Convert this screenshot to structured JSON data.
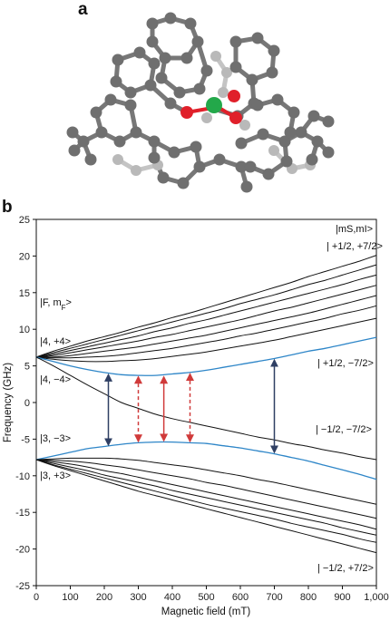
{
  "panel_labels": {
    "a": "a",
    "b": "b"
  },
  "colors": {
    "black_lines": "#111111",
    "blue_lines": "#2e86c8",
    "red_arrows": "#d03a3a",
    "navy_arrows": "#2f3f63",
    "atom_grey": "#6e6e6e",
    "atom_light": "#b4b4b4",
    "oxygen": "#e0202a",
    "holmium": "#23a84a"
  },
  "molecule": {
    "description_icon": "molecular-structure-icon"
  },
  "chart_data": {
    "type": "line",
    "title": "",
    "xlabel": "Magnetic field (mT)",
    "ylabel": "Frequency (GHz)",
    "xlim": [
      0,
      1000
    ],
    "ylim": [
      -25,
      25
    ],
    "x_ticks": [
      "0",
      "100",
      "200",
      "300",
      "400",
      "500",
      "600",
      "700",
      "800",
      "900",
      "1,000"
    ],
    "y_ticks": [
      "25",
      "20",
      "15",
      "10",
      "5",
      "0",
      "-5",
      "-10",
      "-15",
      "-20",
      "-25"
    ],
    "x": [
      0,
      50,
      100,
      150,
      200,
      250,
      300,
      350,
      400,
      450,
      500,
      550,
      600,
      650,
      700,
      750,
      800,
      850,
      900,
      950,
      1000
    ],
    "series": [
      {
        "color": "#111111",
        "values": [
          6.2,
          7.0,
          7.7,
          8.4,
          9.0,
          9.6,
          10.3,
          10.9,
          11.6,
          12.2,
          12.9,
          13.6,
          14.3,
          15.0,
          15.7,
          16.4,
          17.2,
          17.9,
          18.6,
          19.3,
          20.1
        ]
      },
      {
        "color": "#111111",
        "values": [
          6.2,
          6.8,
          7.4,
          8.0,
          8.6,
          9.2,
          9.8,
          10.4,
          11.0,
          11.6,
          12.2,
          12.8,
          13.5,
          14.1,
          14.7,
          15.4,
          16.1,
          16.7,
          17.4,
          18.1,
          18.8
        ]
      },
      {
        "color": "#111111",
        "values": [
          6.2,
          6.6,
          7.1,
          7.6,
          8.1,
          8.6,
          9.1,
          9.7,
          10.2,
          10.8,
          11.3,
          11.9,
          12.5,
          13.1,
          13.7,
          14.3,
          14.9,
          15.5,
          16.1,
          16.8,
          17.4
        ]
      },
      {
        "color": "#111111",
        "values": [
          6.2,
          6.4,
          6.8,
          7.2,
          7.6,
          8.0,
          8.4,
          8.9,
          9.3,
          9.8,
          10.3,
          10.8,
          11.3,
          11.9,
          12.5,
          13.0,
          13.6,
          14.2,
          14.8,
          15.4,
          16.0
        ]
      },
      {
        "color": "#111111",
        "values": [
          6.2,
          6.2,
          6.4,
          6.7,
          7.0,
          7.3,
          7.6,
          8.0,
          8.4,
          8.8,
          9.2,
          9.7,
          10.2,
          10.7,
          11.2,
          11.7,
          12.2,
          12.8,
          13.4,
          14.0,
          14.6
        ]
      },
      {
        "color": "#111111",
        "values": [
          6.2,
          6.1,
          6.1,
          6.2,
          6.3,
          6.5,
          6.8,
          7.1,
          7.4,
          7.8,
          8.2,
          8.6,
          9.1,
          9.5,
          10.0,
          10.5,
          11.0,
          11.5,
          12.1,
          12.6,
          13.2
        ]
      },
      {
        "color": "#111111",
        "values": [
          6.2,
          5.9,
          5.7,
          5.6,
          5.6,
          5.7,
          5.8,
          6.0,
          6.3,
          6.6,
          6.9,
          7.3,
          7.7,
          8.1,
          8.5,
          9.0,
          9.5,
          10.0,
          10.5,
          11.0,
          11.5
        ]
      },
      {
        "color": "#2e86c8",
        "values": [
          6.2,
          5.6,
          5.0,
          4.5,
          4.1,
          3.8,
          3.7,
          3.7,
          3.9,
          4.1,
          4.4,
          4.8,
          5.2,
          5.6,
          6.0,
          6.5,
          7.0,
          7.4,
          7.9,
          8.4,
          8.9
        ]
      },
      {
        "color": "#111111",
        "values": [
          6.2,
          5.0,
          3.7,
          2.4,
          1.2,
          0.0,
          -0.8,
          -1.6,
          -2.2,
          -2.7,
          -3.2,
          -3.7,
          -4.2,
          -4.7,
          -5.1,
          -5.6,
          -6.0,
          -6.5,
          -6.9,
          -7.4,
          -7.8
        ]
      },
      {
        "color": "#2e86c8",
        "values": [
          -7.8,
          -7.3,
          -6.8,
          -6.3,
          -6.0,
          -5.7,
          -5.5,
          -5.4,
          -5.4,
          -5.5,
          -5.6,
          -5.9,
          -6.2,
          -6.6,
          -7.0,
          -7.5,
          -8.0,
          -8.6,
          -9.2,
          -9.8,
          -10.5
        ]
      },
      {
        "color": "#111111",
        "values": [
          -7.8,
          -7.7,
          -7.6,
          -7.6,
          -7.6,
          -7.7,
          -7.9,
          -8.2,
          -8.5,
          -8.8,
          -9.2,
          -9.6,
          -10.0,
          -10.5,
          -10.9,
          -11.4,
          -11.9,
          -12.4,
          -12.9,
          -13.4,
          -13.9
        ]
      },
      {
        "color": "#111111",
        "values": [
          -7.8,
          -7.9,
          -8.0,
          -8.2,
          -8.5,
          -8.8,
          -9.2,
          -9.6,
          -10.0,
          -10.4,
          -10.9,
          -11.3,
          -11.8,
          -12.3,
          -12.8,
          -13.3,
          -13.8,
          -14.3,
          -14.8,
          -15.3,
          -15.8
        ]
      },
      {
        "color": "#111111",
        "values": [
          -7.8,
          -8.1,
          -8.4,
          -8.8,
          -9.3,
          -9.7,
          -10.2,
          -10.7,
          -11.2,
          -11.7,
          -12.2,
          -12.7,
          -13.2,
          -13.7,
          -14.2,
          -14.7,
          -15.2,
          -15.7,
          -16.2,
          -16.7,
          -17.3
        ]
      },
      {
        "color": "#111111",
        "values": [
          -7.8,
          -8.3,
          -8.8,
          -9.3,
          -9.9,
          -10.4,
          -10.9,
          -11.4,
          -12.0,
          -12.5,
          -13.0,
          -13.5,
          -14.0,
          -14.5,
          -15.0,
          -15.5,
          -16.0,
          -16.5,
          -17.1,
          -17.6,
          -18.1
        ]
      },
      {
        "color": "#111111",
        "values": [
          -7.8,
          -8.5,
          -9.1,
          -9.7,
          -10.3,
          -10.9,
          -11.5,
          -12.1,
          -12.7,
          -13.3,
          -13.9,
          -14.4,
          -14.9,
          -15.4,
          -15.9,
          -16.5,
          -17.0,
          -17.5,
          -18.0,
          -18.6,
          -19.1
        ]
      },
      {
        "color": "#111111",
        "values": [
          -7.8,
          -8.6,
          -9.3,
          -10.0,
          -10.7,
          -11.4,
          -12.1,
          -12.7,
          -13.3,
          -13.9,
          -14.5,
          -15.1,
          -15.7,
          -16.3,
          -16.9,
          -17.5,
          -18.1,
          -18.7,
          -19.3,
          -19.9,
          -20.5
        ]
      }
    ],
    "arrows": [
      {
        "x": 212,
        "y1": 4.0,
        "y2": -6.0,
        "color": "#2f3f63",
        "style": "solid"
      },
      {
        "x": 300,
        "y1": 3.7,
        "y2": -5.5,
        "color": "#d03a3a",
        "style": "dashed"
      },
      {
        "x": 375,
        "y1": 3.7,
        "y2": -5.4,
        "color": "#d03a3a",
        "style": "solid"
      },
      {
        "x": 452,
        "y1": 4.1,
        "y2": -5.5,
        "color": "#d03a3a",
        "style": "dashed"
      },
      {
        "x": 700,
        "y1": 6.0,
        "y2": -7.0,
        "color": "#2f3f63",
        "style": "solid"
      }
    ],
    "annotations": {
      "top_right_header": "|mS,mI>",
      "top_right_sub_s": "S",
      "top_right_sub_i": "I",
      "upper_right_label": "| +1/2, +7/2>",
      "left_header_F": "|F, m",
      "left_header_sub": "F",
      "left_header_close": ">",
      "state_4p4": "|4, +4>",
      "state_4m4": "|4, −4>",
      "mid_right_upper": "| +1/2, −7/2>",
      "mid_right_lower": "| −1/2, −7/2>",
      "state_3m3": "|3, −3>",
      "state_3p3": "|3, +3>",
      "bottom_right": "| −1/2, +7/2>"
    }
  }
}
